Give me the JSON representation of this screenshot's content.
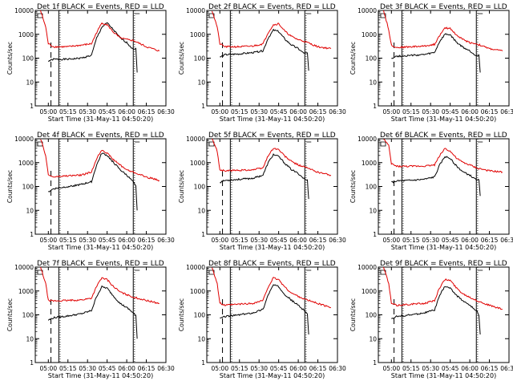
{
  "chart_data": [
    {
      "type": "line",
      "title": "Det 1f BLACK = Events, RED = LLD",
      "xlabel": "Start Time (31-May-11 04:50:20)",
      "ylabel": "Counts/sec",
      "y_scale": "log",
      "ylim": [
        1,
        10000
      ],
      "xlim": [
        "04:50",
        "06:30"
      ],
      "x_ticks": [
        "05:00",
        "05:15",
        "05:30",
        "05:45",
        "06:00",
        "06:15",
        "06:30"
      ],
      "y_ticks": [
        "1",
        "10",
        "100",
        "1000",
        "10000"
      ],
      "vlines_dashed": [
        "05:02"
      ],
      "vlines_solid": [
        "05:08",
        "06:05"
      ],
      "vlines_dotted": [
        "05:09",
        "06:06"
      ],
      "series": [
        {
          "color": "#000000",
          "x": [
            "05:00",
            "05:04",
            "05:15",
            "05:25",
            "05:33",
            "05:37",
            "05:41",
            "05:45",
            "05:50",
            "05:55",
            "06:00",
            "06:03",
            "06:05",
            "06:07",
            "06:08"
          ],
          "y": [
            75,
            90,
            90,
            100,
            130,
            700,
            2000,
            3000,
            1500,
            700,
            450,
            300,
            250,
            250,
            25
          ]
        },
        {
          "color": "#e00000",
          "x": [
            "04:54",
            "04:58",
            "05:00",
            "05:04",
            "05:15",
            "05:25",
            "05:33",
            "05:37",
            "05:41",
            "05:45",
            "05:50",
            "05:55",
            "06:00",
            "06:05",
            "06:15",
            "06:25"
          ],
          "y": [
            10000,
            2000,
            400,
            300,
            300,
            350,
            400,
            1200,
            3000,
            2500,
            1200,
            700,
            600,
            550,
            300,
            200
          ]
        }
      ]
    },
    {
      "type": "line",
      "title": "Det 2f BLACK = Events, RED = LLD",
      "xlabel": "Start Time (31-May-11 04:50:20)",
      "ylabel": "Counts/sec",
      "y_scale": "log",
      "ylim": [
        1,
        10000
      ],
      "xlim": [
        "04:50",
        "06:30"
      ],
      "x_ticks": [
        "05:00",
        "05:15",
        "05:30",
        "05:45",
        "06:00",
        "06:15",
        "06:30"
      ],
      "y_ticks": [
        "1",
        "10",
        "100",
        "1000",
        "10000"
      ],
      "vlines_dashed": [
        "05:02"
      ],
      "vlines_solid": [
        "05:08",
        "06:05"
      ],
      "vlines_dotted": [
        "05:09",
        "06:06"
      ],
      "series": [
        {
          "color": "#000000",
          "x": [
            "05:00",
            "05:04",
            "05:15",
            "05:25",
            "05:33",
            "05:37",
            "05:41",
            "05:45",
            "05:50",
            "05:55",
            "06:00",
            "06:03",
            "06:05",
            "06:07",
            "06:08"
          ],
          "y": [
            110,
            140,
            150,
            170,
            200,
            700,
            1500,
            1300,
            600,
            350,
            250,
            180,
            160,
            160,
            30
          ]
        },
        {
          "color": "#e00000",
          "x": [
            "04:54",
            "04:58",
            "05:00",
            "05:04",
            "05:15",
            "05:25",
            "05:33",
            "05:37",
            "05:41",
            "05:45",
            "05:50",
            "05:55",
            "06:00",
            "06:05",
            "06:15",
            "06:25"
          ],
          "y": [
            10000,
            2000,
            400,
            300,
            300,
            320,
            400,
            1200,
            2500,
            2800,
            1300,
            800,
            600,
            500,
            300,
            250
          ]
        }
      ]
    },
    {
      "type": "line",
      "title": "Det 3f BLACK = Events, RED = LLD",
      "xlabel": "Start Time (31-May-11 04:50:20)",
      "ylabel": "Counts/sec",
      "y_scale": "log",
      "ylim": [
        1,
        10000
      ],
      "xlim": [
        "04:50",
        "06:30"
      ],
      "x_ticks": [
        "05:00",
        "05:15",
        "05:30",
        "05:45",
        "06:00",
        "06:15",
        "06:30"
      ],
      "y_ticks": [
        "1",
        "10",
        "100",
        "1000",
        "10000"
      ],
      "vlines_dashed": [
        "05:02"
      ],
      "vlines_solid": [
        "05:08",
        "06:05"
      ],
      "vlines_dotted": [
        "05:09",
        "06:06"
      ],
      "series": [
        {
          "color": "#000000",
          "x": [
            "05:00",
            "05:04",
            "05:15",
            "05:25",
            "05:33",
            "05:37",
            "05:41",
            "05:45",
            "05:50",
            "05:55",
            "06:00",
            "06:03",
            "06:05",
            "06:07",
            "06:08"
          ],
          "y": [
            100,
            120,
            130,
            140,
            170,
            500,
            1000,
            950,
            450,
            280,
            200,
            150,
            130,
            130,
            25
          ]
        },
        {
          "color": "#e00000",
          "x": [
            "04:54",
            "04:58",
            "05:00",
            "05:04",
            "05:15",
            "05:25",
            "05:33",
            "05:37",
            "05:41",
            "05:45",
            "05:50",
            "05:55",
            "06:00",
            "06:05",
            "06:15",
            "06:25"
          ],
          "y": [
            10000,
            1500,
            350,
            280,
            300,
            320,
            380,
            900,
            1800,
            1800,
            900,
            600,
            450,
            400,
            250,
            200
          ]
        }
      ]
    },
    {
      "type": "line",
      "title": "Det 4f BLACK = Events, RED = LLD",
      "xlabel": "Start Time (31-May-11 04:50:20)",
      "ylabel": "Counts/sec",
      "y_scale": "log",
      "ylim": [
        1,
        10000
      ],
      "xlim": [
        "04:50",
        "06:30"
      ],
      "x_ticks": [
        "05:00",
        "05:15",
        "05:30",
        "05:45",
        "06:00",
        "06:15",
        "06:30"
      ],
      "y_ticks": [
        "1",
        "10",
        "100",
        "1000",
        "10000"
      ],
      "vlines_dashed": [
        "05:02"
      ],
      "vlines_solid": [
        "05:08",
        "06:05"
      ],
      "vlines_dotted": [
        "05:09",
        "06:06"
      ],
      "series": [
        {
          "color": "#000000",
          "x": [
            "05:00",
            "05:04",
            "05:15",
            "05:25",
            "05:33",
            "05:37",
            "05:41",
            "05:45",
            "05:50",
            "05:55",
            "06:00",
            "06:03",
            "06:05",
            "06:07",
            "06:08"
          ],
          "y": [
            60,
            80,
            100,
            120,
            160,
            800,
            2500,
            2000,
            1000,
            500,
            300,
            200,
            150,
            100,
            10
          ]
        },
        {
          "color": "#e00000",
          "x": [
            "04:54",
            "04:58",
            "05:00",
            "05:04",
            "05:15",
            "05:25",
            "05:33",
            "05:37",
            "05:41",
            "05:45",
            "05:50",
            "05:55",
            "06:00",
            "06:05",
            "06:15",
            "06:25"
          ],
          "y": [
            10000,
            2000,
            300,
            250,
            280,
            300,
            400,
            1500,
            3500,
            2500,
            1300,
            800,
            500,
            400,
            250,
            180
          ]
        }
      ]
    },
    {
      "type": "line",
      "title": "Det 5f BLACK = Events, RED = LLD",
      "xlabel": "Start Time (31-May-11 04:50:20)",
      "ylabel": "Counts/sec",
      "y_scale": "log",
      "ylim": [
        1,
        10000
      ],
      "xlim": [
        "04:50",
        "06:30"
      ],
      "x_ticks": [
        "05:00",
        "05:15",
        "05:30",
        "05:45",
        "06:00",
        "06:15",
        "06:30"
      ],
      "y_ticks": [
        "1",
        "10",
        "100",
        "1000",
        "10000"
      ],
      "vlines_dashed": [
        "05:02"
      ],
      "vlines_solid": [
        "05:08",
        "06:05"
      ],
      "vlines_dotted": [
        "05:09",
        "06:06"
      ],
      "series": [
        {
          "color": "#000000",
          "x": [
            "05:00",
            "05:04",
            "05:15",
            "05:25",
            "05:33",
            "05:37",
            "05:41",
            "05:45",
            "05:50",
            "05:55",
            "06:00",
            "06:03",
            "06:05",
            "06:07",
            "06:08"
          ],
          "y": [
            150,
            180,
            200,
            220,
            300,
            1000,
            2200,
            1800,
            900,
            500,
            350,
            250,
            200,
            180,
            30
          ]
        },
        {
          "color": "#e00000",
          "x": [
            "04:54",
            "04:58",
            "05:00",
            "05:04",
            "05:15",
            "05:25",
            "05:33",
            "05:37",
            "05:41",
            "05:45",
            "05:50",
            "05:55",
            "06:00",
            "06:05",
            "06:15",
            "06:25"
          ],
          "y": [
            10000,
            3000,
            500,
            450,
            480,
            500,
            600,
            2000,
            4000,
            3500,
            1800,
            1100,
            800,
            650,
            400,
            300
          ]
        }
      ]
    },
    {
      "type": "line",
      "title": "Det 6f BLACK = Events, RED = LLD",
      "xlabel": "Start Time (31-May-11 04:50:20)",
      "ylabel": "Counts/sec",
      "y_scale": "log",
      "ylim": [
        1,
        10000
      ],
      "xlim": [
        "04:50",
        "06:30"
      ],
      "x_ticks": [
        "05:00",
        "05:15",
        "05:30",
        "05:45",
        "06:00",
        "06:15",
        "06:30"
      ],
      "y_ticks": [
        "1",
        "10",
        "100",
        "1000",
        "10000"
      ],
      "vlines_dashed": [
        "05:02"
      ],
      "vlines_solid": [
        "05:08",
        "06:05"
      ],
      "vlines_dotted": [
        "05:09",
        "06:06"
      ],
      "series": [
        {
          "color": "#000000",
          "x": [
            "05:00",
            "05:04",
            "05:15",
            "05:25",
            "05:33",
            "05:37",
            "05:41",
            "05:45",
            "05:50",
            "05:55",
            "06:00",
            "06:03",
            "06:05",
            "06:07",
            "06:08"
          ],
          "y": [
            150,
            170,
            180,
            200,
            250,
            800,
            1800,
            1500,
            700,
            400,
            300,
            220,
            200,
            180,
            40
          ]
        },
        {
          "color": "#e00000",
          "x": [
            "04:54",
            "04:58",
            "05:00",
            "05:04",
            "05:15",
            "05:25",
            "05:33",
            "05:37",
            "05:41",
            "05:45",
            "05:50",
            "05:55",
            "06:00",
            "06:05",
            "06:15",
            "06:25"
          ],
          "y": [
            10000,
            5000,
            900,
            700,
            700,
            720,
            800,
            2000,
            4000,
            3000,
            1500,
            1000,
            800,
            600,
            450,
            400
          ]
        }
      ]
    },
    {
      "type": "line",
      "title": "Det 7f BLACK = Events, RED = LLD",
      "xlabel": "Start Time (31-May-11 04:50:20)",
      "ylabel": "Counts/sec",
      "y_scale": "log",
      "ylim": [
        1,
        10000
      ],
      "xlim": [
        "04:50",
        "06:30"
      ],
      "x_ticks": [
        "05:00",
        "05:15",
        "05:30",
        "05:45",
        "06:00",
        "06:15",
        "06:30"
      ],
      "y_ticks": [
        "1",
        "10",
        "100",
        "1000",
        "10000"
      ],
      "vlines_dashed": [
        "05:02"
      ],
      "vlines_solid": [
        "05:08",
        "06:05"
      ],
      "vlines_dotted": [
        "05:09",
        "06:06"
      ],
      "series": [
        {
          "color": "#000000",
          "x": [
            "05:00",
            "05:04",
            "05:15",
            "05:25",
            "05:33",
            "05:37",
            "05:41",
            "05:45",
            "05:50",
            "05:55",
            "06:00",
            "06:03",
            "06:05",
            "06:07",
            "06:08"
          ],
          "y": [
            60,
            75,
            90,
            110,
            150,
            600,
            1500,
            1300,
            600,
            300,
            200,
            150,
            120,
            90,
            10
          ]
        },
        {
          "color": "#e00000",
          "x": [
            "04:54",
            "04:58",
            "05:00",
            "05:04",
            "05:15",
            "05:25",
            "05:33",
            "05:37",
            "05:41",
            "05:45",
            "05:50",
            "05:55",
            "06:00",
            "06:05",
            "06:15",
            "06:25"
          ],
          "y": [
            10000,
            2000,
            400,
            380,
            400,
            420,
            500,
            1600,
            3500,
            3000,
            1500,
            900,
            700,
            550,
            400,
            300
          ]
        }
      ]
    },
    {
      "type": "line",
      "title": "Det 8f BLACK = Events, RED = LLD",
      "xlabel": "Start Time (31-May-11 04:50:20)",
      "ylabel": "Counts/sec",
      "y_scale": "log",
      "ylim": [
        1,
        10000
      ],
      "xlim": [
        "04:50",
        "06:30"
      ],
      "x_ticks": [
        "05:00",
        "05:15",
        "05:30",
        "05:45",
        "06:00",
        "06:15",
        "06:30"
      ],
      "y_ticks": [
        "1",
        "10",
        "100",
        "1000",
        "10000"
      ],
      "vlines_dashed": [
        "05:02"
      ],
      "vlines_solid": [
        "05:08",
        "06:05"
      ],
      "vlines_dotted": [
        "05:09",
        "06:06"
      ],
      "series": [
        {
          "color": "#000000",
          "x": [
            "05:00",
            "05:04",
            "05:15",
            "05:25",
            "05:33",
            "05:37",
            "05:41",
            "05:45",
            "05:50",
            "05:55",
            "06:00",
            "06:03",
            "06:05",
            "06:07",
            "06:08"
          ],
          "y": [
            70,
            85,
            100,
            120,
            170,
            700,
            1800,
            1500,
            700,
            400,
            250,
            180,
            150,
            100,
            15
          ]
        },
        {
          "color": "#e00000",
          "x": [
            "04:54",
            "04:58",
            "05:00",
            "05:04",
            "05:15",
            "05:25",
            "05:33",
            "05:37",
            "05:41",
            "05:45",
            "05:50",
            "05:55",
            "06:00",
            "06:05",
            "06:15",
            "06:25"
          ],
          "y": [
            10000,
            2000,
            300,
            250,
            280,
            300,
            400,
            1500,
            3500,
            3000,
            1400,
            800,
            600,
            450,
            300,
            200
          ]
        }
      ]
    },
    {
      "type": "line",
      "title": "Det 9f BLACK = Events, RED = LLD",
      "xlabel": "Start Time (31-May-11 04:50:20)",
      "ylabel": "Counts/sec",
      "y_scale": "log",
      "ylim": [
        1,
        10000
      ],
      "xlim": [
        "04:50",
        "06:30"
      ],
      "x_ticks": [
        "05:00",
        "05:15",
        "05:30",
        "05:45",
        "06:00",
        "06:15",
        "06:30"
      ],
      "y_ticks": [
        "1",
        "10",
        "100",
        "1000",
        "10000"
      ],
      "vlines_dashed": [
        "05:02"
      ],
      "vlines_solid": [
        "05:08",
        "06:05"
      ],
      "vlines_dotted": [
        "05:09",
        "06:06"
      ],
      "series": [
        {
          "color": "#000000",
          "x": [
            "05:00",
            "05:04",
            "05:15",
            "05:25",
            "05:33",
            "05:37",
            "05:41",
            "05:45",
            "05:50",
            "05:55",
            "06:00",
            "06:03",
            "06:05",
            "06:07",
            "06:08"
          ],
          "y": [
            70,
            85,
            100,
            120,
            160,
            650,
            1600,
            1300,
            650,
            380,
            250,
            180,
            150,
            100,
            15
          ]
        },
        {
          "color": "#e00000",
          "x": [
            "04:54",
            "04:58",
            "05:00",
            "05:04",
            "05:15",
            "05:25",
            "05:33",
            "05:37",
            "05:41",
            "05:45",
            "05:50",
            "05:55",
            "06:00",
            "06:05",
            "06:15",
            "06:25"
          ],
          "y": [
            10000,
            2000,
            300,
            250,
            280,
            300,
            400,
            1400,
            3000,
            2800,
            1300,
            750,
            550,
            400,
            250,
            170
          ]
        }
      ]
    }
  ]
}
